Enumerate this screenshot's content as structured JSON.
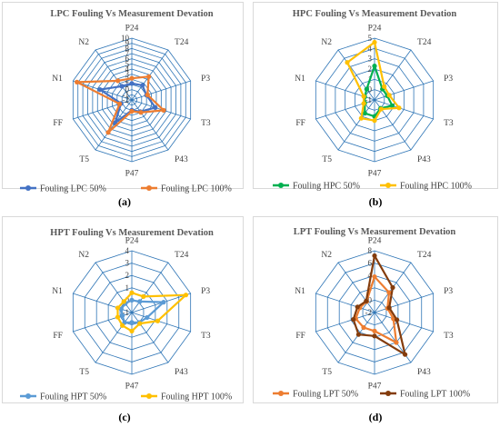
{
  "panel_labels": [
    "(a)",
    "(b)",
    "(c)",
    "(d)"
  ],
  "chart_data": [
    {
      "type": "radar",
      "title": "LPC Fouling Vs Measurement  Devation",
      "categories": [
        "P24",
        "T24",
        "P3",
        "T3",
        "P43",
        "P47",
        "T5",
        "FF",
        "N1",
        "N2"
      ],
      "rlim": [
        -2,
        10
      ],
      "rticks": [
        "10",
        "9",
        "8",
        "7",
        "6",
        "5",
        "4",
        "3",
        "2",
        "1",
        "0",
        "-1",
        "-2"
      ],
      "legend_position": "bottom",
      "grid": true,
      "series": [
        {
          "name": "Fouling  LPC 50%",
          "color": "#4472c4",
          "values": [
            1.2,
            1.5,
            1.0,
            2.8,
            0.8,
            0.0,
            3.5,
            0.2,
            4.5,
            1.3
          ]
        },
        {
          "name": "Fouling  LPC 100%",
          "color": "#ed7d31",
          "values": [
            2.2,
            3.6,
            1.2,
            4.5,
            1.0,
            0.2,
            5.8,
            0.5,
            9.2,
            2.6
          ]
        }
      ]
    },
    {
      "type": "radar",
      "title": "HPC Fouling Vs Measurement  Devation",
      "categories": [
        "P24",
        "T24",
        "P3",
        "T3",
        "P43",
        "P47",
        "T5",
        "FF",
        "N1",
        "N2"
      ],
      "rlim": [
        -1,
        5
      ],
      "rticks": [
        "5",
        "4",
        "3",
        "2",
        "1",
        "0",
        "-1"
      ],
      "legend_position": "bottom",
      "grid": true,
      "series": [
        {
          "name": "Fouling HPC 50%",
          "color": "#00b050",
          "values": [
            2.3,
            0.3,
            0.3,
            0.8,
            0.0,
            0.6,
            0.6,
            0.0,
            0.0,
            0.3
          ]
        },
        {
          "name": "Fouling HPC 100%",
          "color": "#ffc000",
          "values": [
            4.6,
            0.6,
            0.5,
            1.5,
            0.1,
            1.0,
            1.2,
            0.1,
            0.1,
            3.5
          ]
        }
      ]
    },
    {
      "type": "radar",
      "title": "HPT Fouling Vs Measurement  Devation",
      "categories": [
        "P24",
        "T24",
        "P3",
        "T3",
        "P43",
        "P47",
        "T5",
        "FF",
        "N1",
        "N2"
      ],
      "rlim": [
        -1,
        4
      ],
      "rticks": [
        "4",
        "3",
        "2",
        "1",
        "0",
        "-1"
      ],
      "legend_position": "bottom",
      "grid": true,
      "series": [
        {
          "name": "Fouling HPT 50%",
          "color": "#5b9bd5",
          "values": [
            0.0,
            0.1,
            1.7,
            0.3,
            0.0,
            -0.2,
            0.0,
            -0.2,
            -0.1,
            -0.1
          ]
        },
        {
          "name": "Fouling HPT 100%",
          "color": "#ffc000",
          "values": [
            0.6,
            0.6,
            3.6,
            1.2,
            0.1,
            0.5,
            0.3,
            0.2,
            0.2,
            0.1
          ]
        }
      ]
    },
    {
      "type": "radar",
      "title": "LPT Fouling Vs Measurement  Devation",
      "categories": [
        "P24",
        "T24",
        "P3",
        "T3",
        "P43",
        "P47",
        "T5",
        "FF",
        "N1",
        "N2"
      ],
      "rlim": [
        -2,
        8
      ],
      "rticks": [
        "8",
        "6",
        "4",
        "2",
        "0",
        "-2"
      ],
      "legend_position": "bottom",
      "grid": true,
      "series": [
        {
          "name": "Fouling LPT 50%",
          "color": "#ed7d31",
          "values": [
            3.8,
            2.0,
            0.2,
            1.2,
            4.0,
            1.0,
            1.0,
            1.2,
            0.5,
            0.2
          ]
        },
        {
          "name": "Fouling LPT 100%",
          "color": "#843c0c",
          "values": [
            7.2,
            3.0,
            0.5,
            1.8,
            6.4,
            1.8,
            2.4,
            1.6,
            0.9,
            0.3
          ]
        }
      ]
    }
  ]
}
